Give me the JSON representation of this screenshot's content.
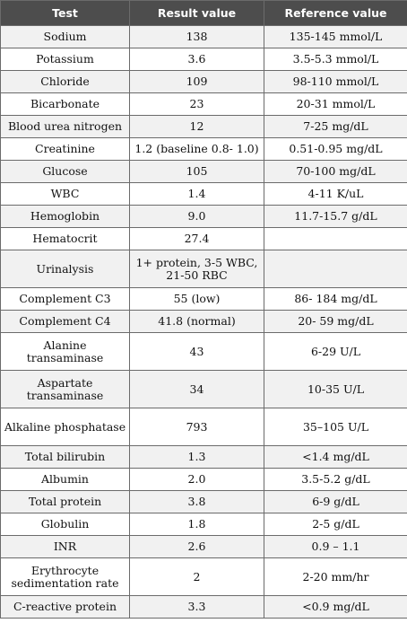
{
  "table": {
    "headers": [
      "Test",
      "Result value",
      "Reference value"
    ],
    "rows": [
      {
        "test": "Sodium",
        "result": "138",
        "reference": "135-145 mmol/L"
      },
      {
        "test": "Potassium",
        "result": "3.6",
        "reference": "3.5-5.3 mmol/L"
      },
      {
        "test": "Chloride",
        "result": "109",
        "reference": "98-110 mmol/L"
      },
      {
        "test": "Bicarbonate",
        "result": "23",
        "reference": "20-31 mmol/L"
      },
      {
        "test": "Blood urea nitrogen",
        "result": "12",
        "reference": "7-25 mg/dL"
      },
      {
        "test": "Creatinine",
        "result": "1.2 (baseline 0.8- 1.0)",
        "reference": "0.51-0.95 mg/dL"
      },
      {
        "test": "Glucose",
        "result": "105",
        "reference": "70-100 mg/dL"
      },
      {
        "test": "WBC",
        "result": "1.4",
        "reference": "4-11 K/uL"
      },
      {
        "test": "Hemoglobin",
        "result": "9.0",
        "reference": "11.7-15.7 g/dL"
      },
      {
        "test": "Hematocrit",
        "result": "27.4",
        "reference": ""
      },
      {
        "test": "Urinalysis",
        "result": "1+ protein, 3-5 WBC, 21-50 RBC",
        "reference": ""
      },
      {
        "test": "Complement C3",
        "result": "55 (low)",
        "reference": "86- 184 mg/dL"
      },
      {
        "test": "Complement C4",
        "result": "41.8 (normal)",
        "reference": "20- 59 mg/dL"
      },
      {
        "test": "Alanine transaminase",
        "result": "43",
        "reference": "6-29 U/L"
      },
      {
        "test": "Aspartate transaminase",
        "result": "34",
        "reference": "10-35 U/L"
      },
      {
        "test": "Alkaline phosphatase",
        "result": "793",
        "reference": "35–105 U/L"
      },
      {
        "test": "Total bilirubin",
        "result": "1.3",
        "reference": "<1.4 mg/dL"
      },
      {
        "test": "Albumin",
        "result": "2.0",
        "reference": "3.5-5.2 g/dL"
      },
      {
        "test": "Total protein",
        "result": "3.8",
        "reference": "6-9 g/dL"
      },
      {
        "test": "Globulin",
        "result": "1.8",
        "reference": "2-5 g/dL"
      },
      {
        "test": "INR",
        "result": "2.6",
        "reference": "0.9 – 1.1"
      },
      {
        "test": "Erythrocyte sedimentation rate",
        "result": "2",
        "reference": "2-20 mm/hr"
      },
      {
        "test": "C-reactive protein",
        "result": "3.3",
        "reference": "<0.9 mg/dL"
      }
    ]
  }
}
